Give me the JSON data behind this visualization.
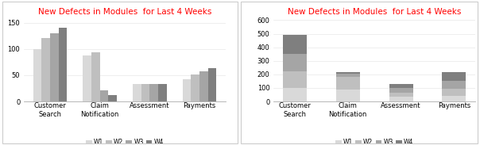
{
  "title": "New Defects in Modules  for Last 4 Weeks",
  "categories": [
    "Customer\nSearch",
    "Claim\nNotification",
    "Assessment",
    "Payments"
  ],
  "weeks": [
    "W1",
    "W2",
    "W3",
    "W4"
  ],
  "values": {
    "Customer Search": [
      100,
      120,
      130,
      140
    ],
    "Claim Notification": [
      88,
      93,
      22,
      12
    ],
    "Assessment": [
      33,
      33,
      33,
      33
    ],
    "Payments": [
      43,
      51,
      57,
      63
    ]
  },
  "colors": [
    "#d9d9d9",
    "#bfbfbf",
    "#a5a5a5",
    "#7f7f7f"
  ],
  "title_color": "#ff0000",
  "title_fontsize": 7.5,
  "tick_fontsize": 6,
  "legend_fontsize": 5.5,
  "clustered_ylim": [
    0,
    160
  ],
  "clustered_yticks": [
    0,
    50,
    100,
    150
  ],
  "stacked_ylim": [
    0,
    620
  ],
  "stacked_yticks": [
    0,
    100,
    200,
    300,
    400,
    500,
    600
  ],
  "bg_color": "#ffffff",
  "border_color": "#cccccc"
}
